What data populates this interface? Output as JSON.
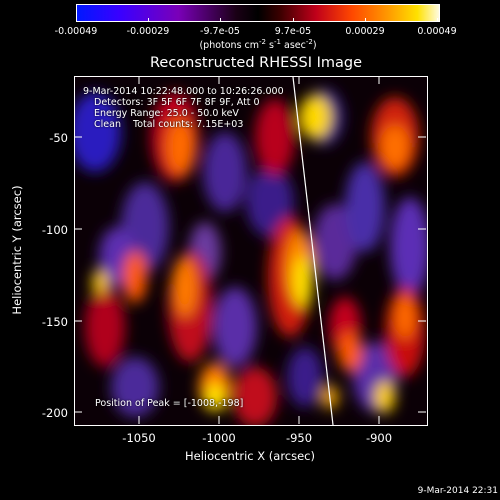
{
  "colorbar": {
    "ticks": [
      "-0.00049",
      "-0.00029",
      "-9.7e-05",
      "9.7e-05",
      "0.00029",
      "0.00049"
    ],
    "units_prefix": "(photons cm",
    "units_sup1": "-2",
    "units_mid": " s",
    "units_sup2": "-1",
    "units_mid2": " asec",
    "units_sup3": "-2",
    "units_suffix": ")"
  },
  "title": "Reconstructed RHESSI Image",
  "annotations": {
    "time_range": "9-Mar-2014 10:22:48.000 to 10:26:26.000",
    "detectors": "Detectors: 3F 5F 6F 7F 8F 9F, Att 0",
    "energy": "Energy Range: 25.0 - 50.0 keV",
    "clean": "Clean",
    "counts": "Total counts: 7.15E+03",
    "peak": "Position of Peak = [-1008,-198]"
  },
  "axes": {
    "x_title": "Heliocentric X (arcsec)",
    "y_title": "Heliocentric Y (arcsec)",
    "x_ticks": [
      "-1050",
      "-1000",
      "-950",
      "-900"
    ],
    "y_ticks": [
      "-50",
      "-100",
      "-150",
      "-200"
    ]
  },
  "timestamp": "9-Mar-2014 22:31",
  "colors": {
    "negative": "#5a2a9a",
    "positive_low": "#c4001c",
    "positive_mid": "#ff7a00",
    "positive_high": "#ffe600"
  }
}
